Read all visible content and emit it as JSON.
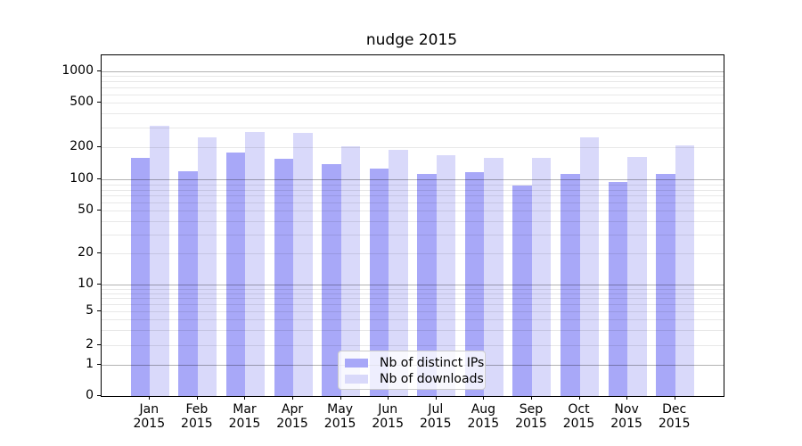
{
  "chart_data": {
    "type": "bar",
    "title": "nudge 2015",
    "categories": [
      "Jan 2015",
      "Feb 2015",
      "Mar 2015",
      "Apr 2015",
      "May 2015",
      "Jun 2015",
      "Jul 2015",
      "Aug 2015",
      "Sep 2015",
      "Oct 2015",
      "Nov 2015",
      "Dec 2015"
    ],
    "series": [
      {
        "name": "Nb of distinct IPs",
        "color": "#a8a8f8",
        "values": [
          160,
          120,
          180,
          157,
          140,
          128,
          112,
          117,
          87,
          112,
          95,
          114
        ]
      },
      {
        "name": "Nb of downloads",
        "color": "#d9d9fa",
        "values": [
          315,
          245,
          275,
          268,
          205,
          190,
          168,
          159,
          159,
          245,
          163,
          208
        ]
      }
    ],
    "xlabel": "",
    "ylabel": "",
    "yscale": "symlog",
    "ylim": [
      0,
      1400
    ],
    "y_ticks": [
      0,
      1,
      2,
      5,
      10,
      20,
      50,
      100,
      200,
      500,
      1000
    ],
    "grid": true,
    "legend_position": "lower center"
  },
  "colors": {
    "major_grid": "#b2b2b2",
    "minor_grid": "#e8e8e8",
    "axis": "#000000",
    "legend_border": "#cccccc"
  }
}
